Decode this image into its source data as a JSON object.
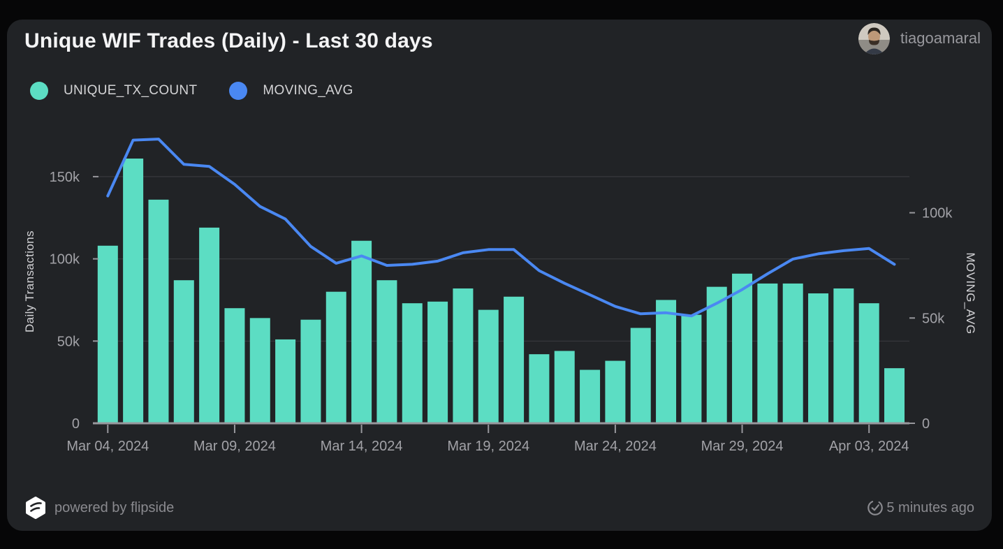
{
  "header": {
    "title": "Unique WIF Trades (Daily) - Last 30 days",
    "user": "tiagoamaral"
  },
  "legend": [
    {
      "label": "UNIQUE_TX_COUNT",
      "color": "#5cddc3"
    },
    {
      "label": "MOVING_AVG",
      "color": "#4a88f2"
    }
  ],
  "chart_data": {
    "type": "bar+line",
    "title": "Unique WIF Trades (Daily) - Last 30 days",
    "grid": "horizontal",
    "categories": [
      "Mar 04, 2024",
      "Mar 05, 2024",
      "Mar 06, 2024",
      "Mar 07, 2024",
      "Mar 08, 2024",
      "Mar 09, 2024",
      "Mar 10, 2024",
      "Mar 11, 2024",
      "Mar 12, 2024",
      "Mar 13, 2024",
      "Mar 14, 2024",
      "Mar 15, 2024",
      "Mar 16, 2024",
      "Mar 17, 2024",
      "Mar 18, 2024",
      "Mar 19, 2024",
      "Mar 20, 2024",
      "Mar 21, 2024",
      "Mar 22, 2024",
      "Mar 23, 2024",
      "Mar 24, 2024",
      "Mar 25, 2024",
      "Mar 26, 2024",
      "Mar 27, 2024",
      "Mar 28, 2024",
      "Mar 29, 2024",
      "Mar 30, 2024",
      "Mar 31, 2024",
      "Apr 01, 2024",
      "Apr 02, 2024",
      "Apr 03, 2024",
      "Apr 04, 2024"
    ],
    "x_tick_labels": [
      "Mar 04, 2024",
      "Mar 09, 2024",
      "Mar 14, 2024",
      "Mar 19, 2024",
      "Mar 24, 2024",
      "Mar 29, 2024",
      "Apr 03, 2024"
    ],
    "series": [
      {
        "name": "UNIQUE_TX_COUNT",
        "type": "bar",
        "axis": "left",
        "color": "#5cddc3",
        "values": [
          108000,
          161000,
          136000,
          87000,
          119000,
          70000,
          64000,
          51000,
          63000,
          80000,
          111000,
          87000,
          73000,
          74000,
          82000,
          69000,
          77000,
          42000,
          44000,
          32500,
          38000,
          58000,
          75000,
          66000,
          83000,
          91000,
          85000,
          85000,
          79000,
          82000,
          73000,
          33500
        ]
      },
      {
        "name": "MOVING_AVG",
        "type": "line",
        "axis": "right",
        "color": "#4a88f2",
        "values": [
          108000,
          134500,
          135000,
          123000,
          122000,
          113500,
          103000,
          97000,
          84000,
          76000,
          79500,
          75000,
          75500,
          77000,
          81000,
          82500,
          82500,
          72500,
          66500,
          61000,
          55500,
          52000,
          52500,
          51000,
          57000,
          63500,
          71000,
          78000,
          80500,
          82000,
          83000,
          75500
        ]
      }
    ],
    "left_axis": {
      "title": "Daily Transactions",
      "ticks": [
        "0",
        "50k",
        "100k",
        "150k"
      ],
      "tick_values": [
        0,
        50000,
        100000,
        150000
      ],
      "range": [
        0,
        175000
      ]
    },
    "right_axis": {
      "title": "MOVING_AVG",
      "ticks": [
        "0",
        "50k",
        "100k"
      ],
      "tick_values": [
        0,
        50000,
        100000
      ],
      "range": [
        0,
        145000
      ]
    }
  },
  "footer": {
    "powered_by": "powered by flipside",
    "updated": "5 minutes ago"
  },
  "colors": {
    "card_bg": "#212326",
    "page_bg": "#060607",
    "bar": "#5cddc3",
    "line": "#4a88f2",
    "grid": "#38393d",
    "axis": "#98989d",
    "tick_text": "#a2a2a7"
  }
}
